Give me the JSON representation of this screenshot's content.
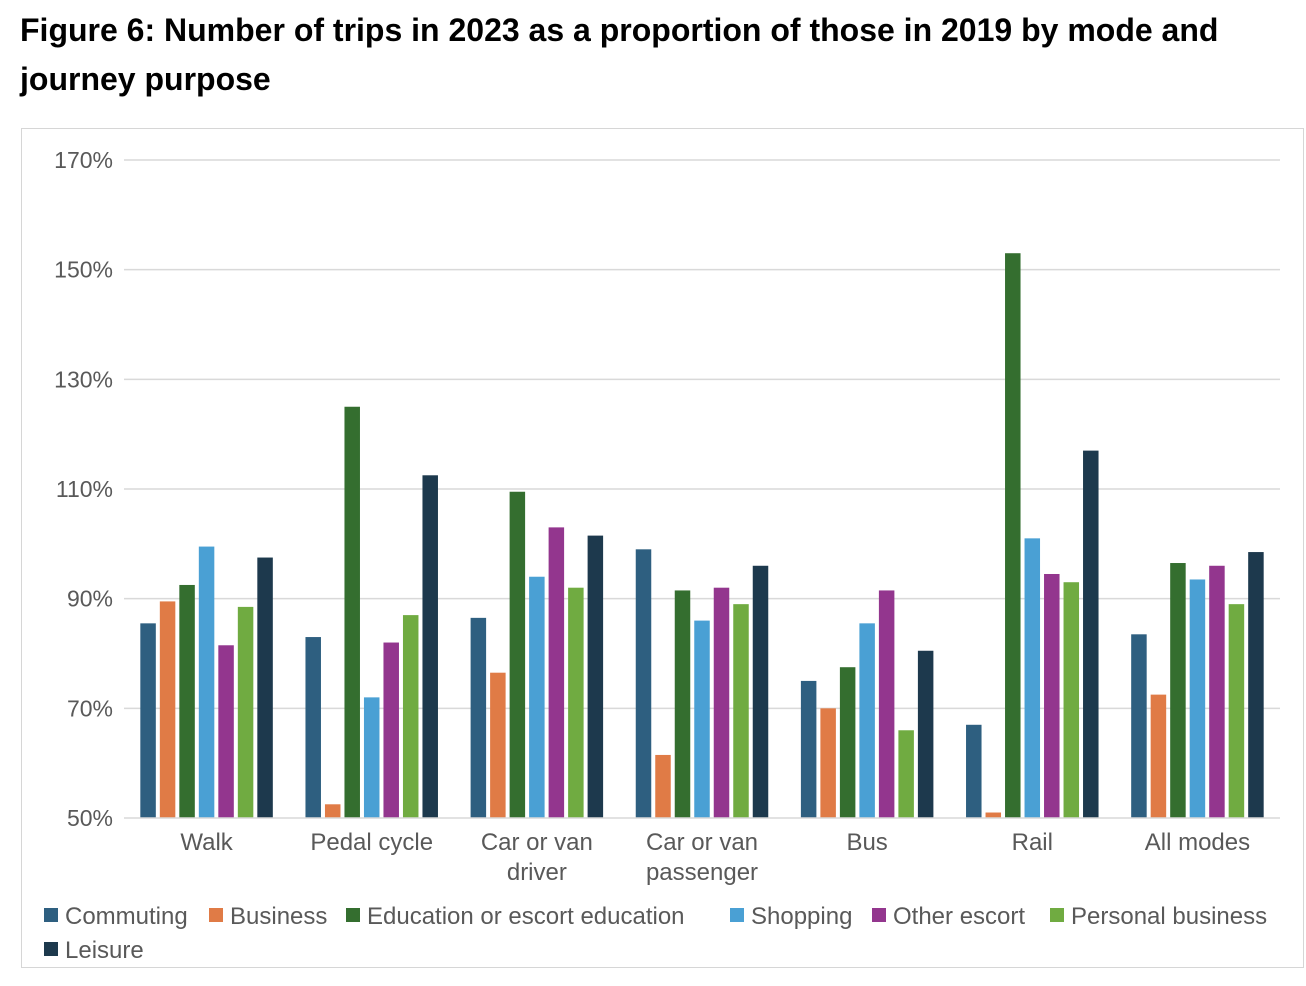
{
  "chart_data": {
    "type": "bar",
    "title": "Figure 6: Number of trips in 2023 as a proportion of those in 2019 by mode and journey purpose",
    "xlabel": "",
    "ylabel": "",
    "ylim": [
      50,
      170
    ],
    "yticks": [
      50,
      70,
      90,
      110,
      130,
      150,
      170
    ],
    "ytick_labels": [
      "50%",
      "70%",
      "90%",
      "110%",
      "130%",
      "150%",
      "170%"
    ],
    "grid": true,
    "legend_position": "bottom",
    "categories": [
      "Walk",
      "Pedal cycle",
      "Car or van driver",
      "Car or van passenger",
      "Bus",
      "Rail",
      "All modes"
    ],
    "category_lines": [
      [
        "Walk"
      ],
      [
        "Pedal cycle"
      ],
      [
        "Car or van",
        "driver"
      ],
      [
        "Car or van",
        "passenger"
      ],
      [
        "Bus"
      ],
      [
        "Rail"
      ],
      [
        "All modes"
      ]
    ],
    "series": [
      {
        "name": "Commuting",
        "color": "#2e5f80",
        "values": [
          85.5,
          83,
          86.5,
          99,
          75,
          67,
          83.5
        ]
      },
      {
        "name": "Business",
        "color": "#e07b46",
        "values": [
          89.5,
          52.5,
          76.5,
          61.5,
          70,
          51,
          72.5
        ]
      },
      {
        "name": "Education or escort education",
        "color": "#346e2f",
        "values": [
          92.5,
          125,
          109.5,
          91.5,
          77.5,
          153,
          96.5
        ]
      },
      {
        "name": "Shopping",
        "color": "#4aa0d4",
        "values": [
          99.5,
          72,
          94,
          86,
          85.5,
          101,
          93.5
        ]
      },
      {
        "name": "Other escort",
        "color": "#93368e",
        "values": [
          81.5,
          82,
          103,
          92,
          91.5,
          94.5,
          96
        ]
      },
      {
        "name": "Personal business",
        "color": "#70ab41",
        "values": [
          88.5,
          87,
          92,
          89,
          66,
          93,
          89
        ]
      },
      {
        "name": "Leisure",
        "color": "#1d394d",
        "values": [
          97.5,
          112.5,
          101.5,
          96,
          80.5,
          117,
          98.5
        ]
      }
    ]
  }
}
